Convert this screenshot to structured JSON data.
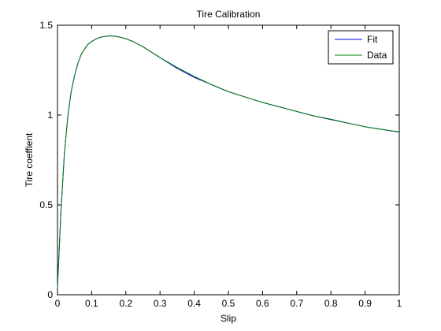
{
  "chart_data": {
    "type": "line",
    "title": "Tire Calibration",
    "xlabel": "Slip",
    "ylabel": "Tire coeffient",
    "xlim": [
      0,
      1
    ],
    "ylim": [
      0,
      1.5
    ],
    "xticks": [
      0,
      0.1,
      0.2,
      0.3,
      0.4,
      0.5,
      0.6,
      0.7,
      0.8,
      0.9,
      1
    ],
    "xtick_labels": [
      "0",
      "0.1",
      "0.2",
      "0.3",
      "0.4",
      "0.5",
      "0.6",
      "0.7",
      "0.8",
      "0.9",
      "1"
    ],
    "yticks": [
      0,
      0.5,
      1,
      1.5
    ],
    "ytick_labels": [
      "0",
      "0.5",
      "1",
      "1.5"
    ],
    "grid": false,
    "legend_position": "top-right",
    "series": [
      {
        "name": "Fit",
        "color": "#0000ff",
        "x": [
          0,
          0.01,
          0.02,
          0.03,
          0.04,
          0.05,
          0.06,
          0.07,
          0.08,
          0.09,
          0.1,
          0.11,
          0.12,
          0.13,
          0.14,
          0.15,
          0.16,
          0.17,
          0.18,
          0.2,
          0.22,
          0.25,
          0.3,
          0.35,
          0.4,
          0.45,
          0.5,
          0.55,
          0.6,
          0.65,
          0.7,
          0.75,
          0.8,
          0.85,
          0.9,
          0.95,
          1.0
        ],
        "values": [
          0.04,
          0.46,
          0.78,
          0.99,
          1.13,
          1.22,
          1.29,
          1.34,
          1.37,
          1.395,
          1.41,
          1.42,
          1.43,
          1.435,
          1.438,
          1.44,
          1.44,
          1.438,
          1.435,
          1.425,
          1.41,
          1.38,
          1.32,
          1.26,
          1.21,
          1.17,
          1.13,
          1.1,
          1.07,
          1.045,
          1.02,
          0.995,
          0.975,
          0.955,
          0.935,
          0.92,
          0.905
        ]
      },
      {
        "name": "Data",
        "color": "#008000",
        "x": [
          0,
          0.01,
          0.02,
          0.03,
          0.04,
          0.05,
          0.06,
          0.07,
          0.08,
          0.09,
          0.1,
          0.11,
          0.12,
          0.13,
          0.14,
          0.15,
          0.16,
          0.17,
          0.18,
          0.2,
          0.22,
          0.25,
          0.3,
          0.35,
          0.4,
          0.45,
          0.5,
          0.55,
          0.6,
          0.65,
          0.7,
          0.75,
          0.8,
          0.85,
          0.9,
          0.95,
          1.0
        ],
        "values": [
          0.04,
          0.46,
          0.78,
          0.99,
          1.13,
          1.22,
          1.29,
          1.34,
          1.37,
          1.395,
          1.41,
          1.42,
          1.43,
          1.435,
          1.438,
          1.44,
          1.44,
          1.438,
          1.435,
          1.425,
          1.41,
          1.38,
          1.32,
          1.265,
          1.215,
          1.17,
          1.13,
          1.1,
          1.07,
          1.045,
          1.02,
          0.995,
          0.977,
          0.955,
          0.935,
          0.92,
          0.907
        ]
      }
    ]
  }
}
